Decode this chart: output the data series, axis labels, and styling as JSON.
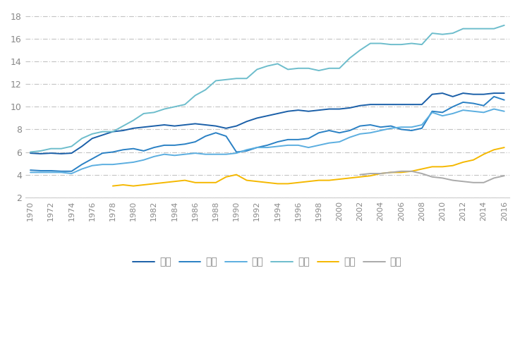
{
  "years": [
    1970,
    1971,
    1972,
    1973,
    1974,
    1975,
    1976,
    1977,
    1978,
    1979,
    1980,
    1981,
    1982,
    1983,
    1984,
    1985,
    1986,
    1987,
    1988,
    1989,
    1990,
    1991,
    1992,
    1993,
    1994,
    1995,
    1996,
    1997,
    1998,
    1999,
    2000,
    2001,
    2002,
    2003,
    2004,
    2005,
    2006,
    2007,
    2008,
    2009,
    2010,
    2011,
    2012,
    2013,
    2014,
    2015,
    2016
  ],
  "德国": [
    5.9,
    5.85,
    5.9,
    5.85,
    5.9,
    6.5,
    7.2,
    7.5,
    7.8,
    7.9,
    8.1,
    8.2,
    8.3,
    8.4,
    8.3,
    8.4,
    8.5,
    8.4,
    8.3,
    8.1,
    8.3,
    8.7,
    9.0,
    9.2,
    9.4,
    9.6,
    9.7,
    9.6,
    9.7,
    9.8,
    9.8,
    9.9,
    10.1,
    10.2,
    10.2,
    10.2,
    10.2,
    10.2,
    10.2,
    11.1,
    11.2,
    10.9,
    11.2,
    11.1,
    11.1,
    11.2,
    11.2
  ],
  "日本": [
    4.4,
    4.35,
    4.35,
    4.3,
    4.3,
    4.9,
    5.4,
    5.9,
    6.0,
    6.2,
    6.3,
    6.1,
    6.4,
    6.6,
    6.6,
    6.7,
    6.9,
    7.4,
    7.7,
    7.4,
    6.0,
    6.1,
    6.4,
    6.6,
    6.9,
    7.1,
    7.1,
    7.2,
    7.7,
    7.9,
    7.7,
    7.9,
    8.3,
    8.4,
    8.2,
    8.3,
    8.0,
    7.9,
    8.1,
    9.6,
    9.5,
    10.0,
    10.4,
    10.3,
    10.1,
    10.9,
    10.6
  ],
  "英国": [
    4.2,
    4.2,
    4.2,
    4.2,
    4.1,
    4.5,
    4.8,
    4.9,
    4.9,
    5.0,
    5.1,
    5.3,
    5.6,
    5.8,
    5.7,
    5.8,
    5.9,
    5.8,
    5.8,
    5.8,
    5.9,
    6.2,
    6.4,
    6.4,
    6.5,
    6.6,
    6.6,
    6.4,
    6.6,
    6.8,
    6.9,
    7.3,
    7.6,
    7.7,
    7.9,
    8.1,
    8.2,
    8.2,
    8.4,
    9.5,
    9.2,
    9.4,
    9.7,
    9.6,
    9.5,
    9.8,
    9.6
  ],
  "美国": [
    6.0,
    6.1,
    6.3,
    6.3,
    6.5,
    7.2,
    7.6,
    7.8,
    7.8,
    8.3,
    8.8,
    9.4,
    9.5,
    9.8,
    10.0,
    10.2,
    11.0,
    11.5,
    12.3,
    12.4,
    12.5,
    12.5,
    13.3,
    13.6,
    13.8,
    13.3,
    13.4,
    13.4,
    13.2,
    13.4,
    13.4,
    14.3,
    15.0,
    15.6,
    15.6,
    15.5,
    15.5,
    15.6,
    15.5,
    16.5,
    16.4,
    16.5,
    16.9,
    16.9,
    16.9,
    16.9,
    17.2
  ],
  "中国": [
    null,
    null,
    null,
    null,
    null,
    null,
    null,
    null,
    3.0,
    3.1,
    3.0,
    3.1,
    3.2,
    3.3,
    3.4,
    3.5,
    3.3,
    3.3,
    3.3,
    3.8,
    4.0,
    3.5,
    3.4,
    3.3,
    3.2,
    3.2,
    3.3,
    3.4,
    3.5,
    3.5,
    3.6,
    3.7,
    3.8,
    3.9,
    4.1,
    4.2,
    4.2,
    4.3,
    4.5,
    4.7,
    4.7,
    4.8,
    5.1,
    5.3,
    5.8,
    6.2,
    6.4
  ],
  "印度": [
    null,
    null,
    null,
    null,
    null,
    null,
    null,
    null,
    null,
    null,
    null,
    null,
    null,
    null,
    null,
    null,
    null,
    null,
    null,
    null,
    null,
    null,
    null,
    null,
    null,
    null,
    null,
    null,
    null,
    null,
    null,
    null,
    4.0,
    4.1,
    4.1,
    4.2,
    4.3,
    4.3,
    4.1,
    3.8,
    3.7,
    3.5,
    3.4,
    3.3,
    3.3,
    3.7,
    3.9
  ],
  "colors": {
    "德国": "#1a5fa8",
    "日本": "#2980c4",
    "英国": "#5baee0",
    "美国": "#6dbdcc",
    "中国": "#f5b800",
    "印度": "#aaaaaa"
  },
  "ylim": [
    2,
    18.5
  ],
  "yticks": [
    2,
    4,
    6,
    8,
    10,
    12,
    14,
    16,
    18
  ],
  "xlim": [
    1970,
    2016
  ],
  "background_color": "#ffffff",
  "text_color": "#888888",
  "grid_color": "#888888",
  "legend_labels": [
    "德国",
    "日本",
    "英国",
    "美国",
    "中国",
    "印度"
  ]
}
